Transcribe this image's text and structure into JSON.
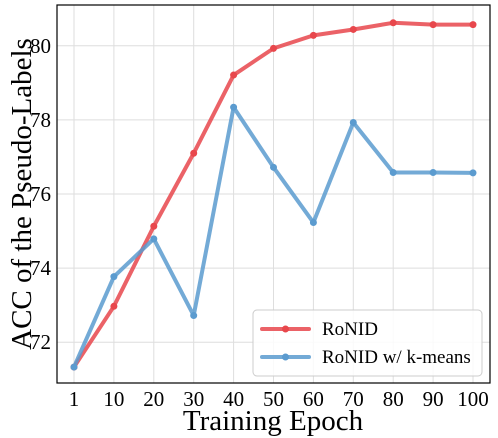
{
  "chart_data": {
    "type": "line",
    "title": "",
    "xlabel": "Training Epoch",
    "ylabel": "ACC of the Pseudo-Labels",
    "x": [
      1,
      10,
      20,
      30,
      40,
      50,
      60,
      70,
      80,
      90,
      100
    ],
    "xtick_labels": [
      "1",
      "10",
      "20",
      "30",
      "40",
      "50",
      "60",
      "70",
      "80",
      "90",
      "100"
    ],
    "yticks": [
      72,
      74,
      76,
      78,
      80
    ],
    "ytick_labels": [
      "72",
      "74",
      "76",
      "78",
      "80"
    ],
    "ylim": [
      70.9,
      81.1
    ],
    "grid": true,
    "legend_position": "lower-right",
    "series": [
      {
        "name": "RoNID",
        "color": "#e8474c",
        "values": [
          71.33,
          72.97,
          75.13,
          77.1,
          79.21,
          79.93,
          80.28,
          80.44,
          80.62,
          80.57,
          80.57
        ]
      },
      {
        "name": "RoNID w/ k-means",
        "color": "#5b9bcf",
        "values": [
          71.33,
          73.77,
          74.79,
          72.72,
          78.34,
          76.72,
          75.23,
          77.93,
          76.58,
          76.58,
          76.57
        ]
      }
    ]
  }
}
